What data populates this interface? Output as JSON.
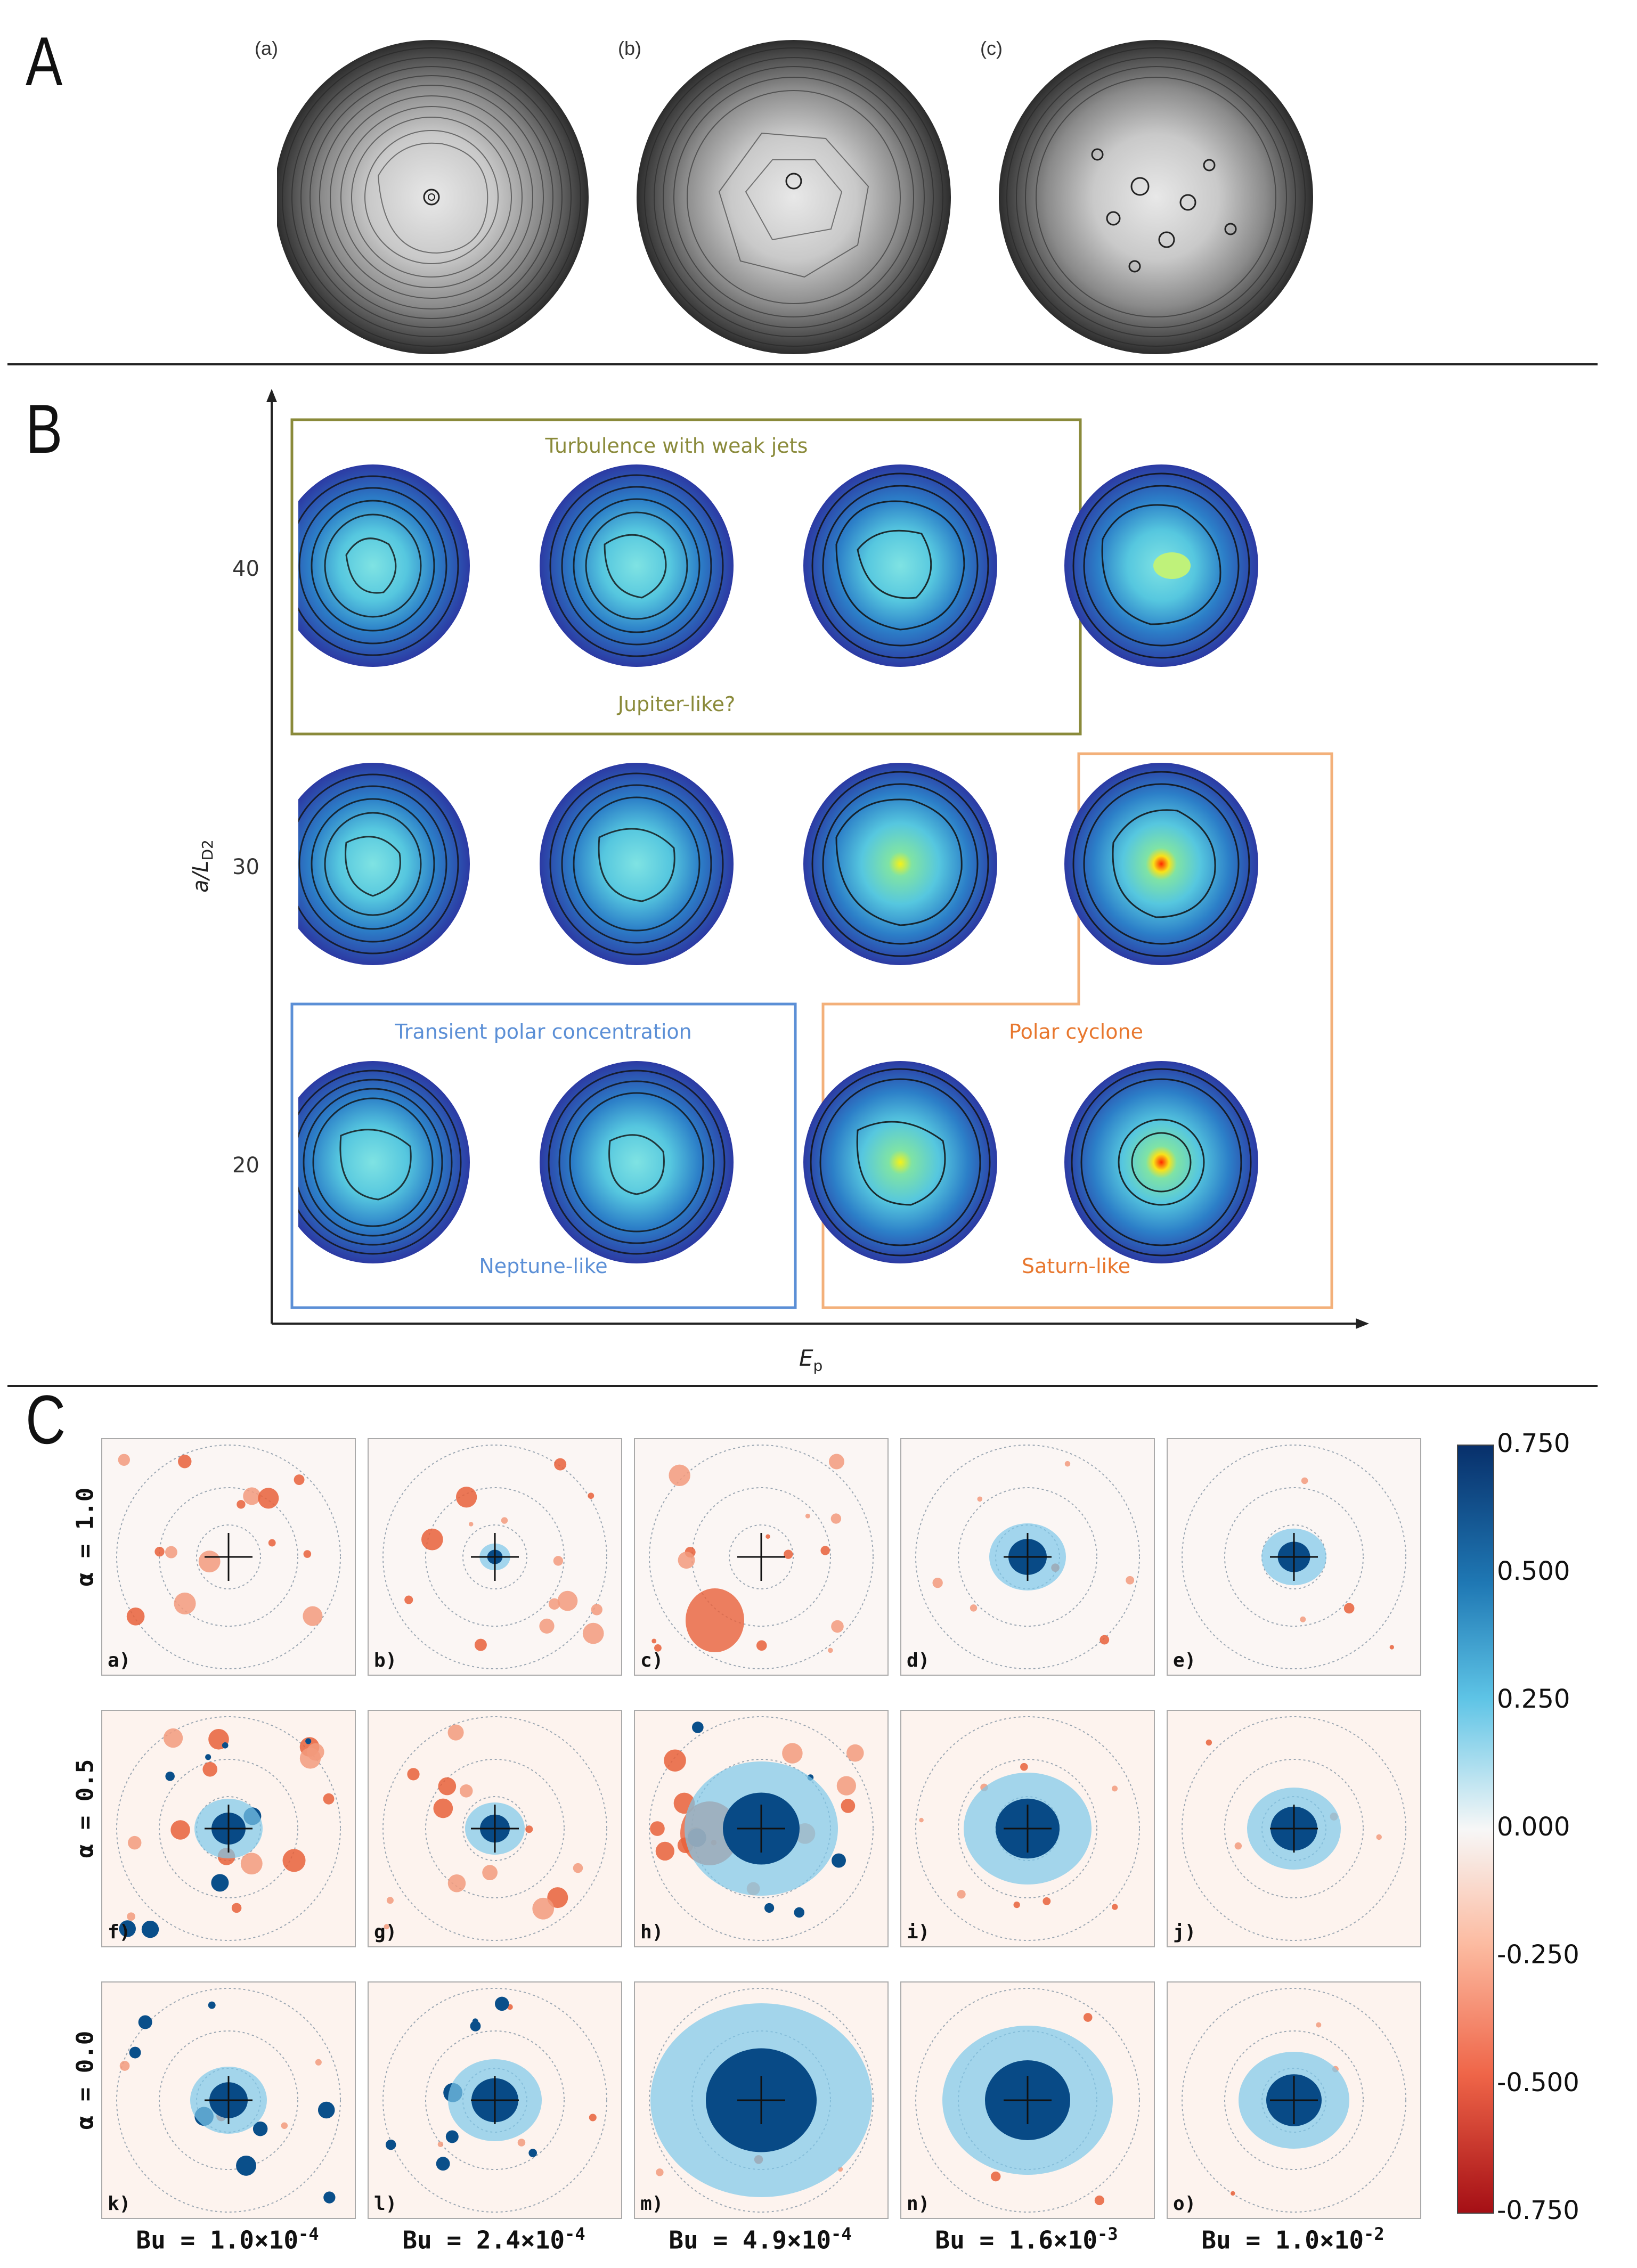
{
  "panels": {
    "a": "A",
    "b": "B",
    "c": "C"
  },
  "section_a": {
    "subfigures": [
      "(a)",
      "(b)",
      "(c)"
    ]
  },
  "section_b": {
    "y_axis_label": "a/L",
    "y_axis_sub": "D2",
    "x_axis_label": "E",
    "x_axis_sub": "p",
    "y_ticks": [
      "40",
      "30",
      "20"
    ],
    "regimes": {
      "turbulence": {
        "title": "Turbulence with weak jets",
        "subtitle": "Jupiter-like?",
        "color": "#8a8a3a"
      },
      "transient": {
        "title": "Transient polar concentration",
        "subtitle": "Neptune-like",
        "color": "#5b8fd6"
      },
      "cyclone": {
        "title": "Polar cyclone",
        "subtitle": "Saturn-like",
        "color": "#e8772e"
      }
    }
  },
  "section_c": {
    "row_labels": [
      "α = 1.0",
      "α = 0.5",
      "α = 0.0"
    ],
    "cell_labels": [
      "a)",
      "b)",
      "c)",
      "d)",
      "e)",
      "f)",
      "g)",
      "h)",
      "i)",
      "j)",
      "k)",
      "l)",
      "m)",
      "n)",
      "o)"
    ],
    "column_labels": [
      "Bu = 1.0×10",
      "Bu = 2.4×10",
      "Bu = 4.9×10",
      "Bu = 1.6×10",
      "Bu = 1.0×10"
    ],
    "column_exponents": [
      "-4",
      "-4",
      "-4",
      "-3",
      "-2"
    ],
    "colorbar_ticks": [
      "0.750",
      "0.500",
      "0.250",
      "0.000",
      "-0.250",
      "-0.500",
      "-0.750"
    ]
  }
}
